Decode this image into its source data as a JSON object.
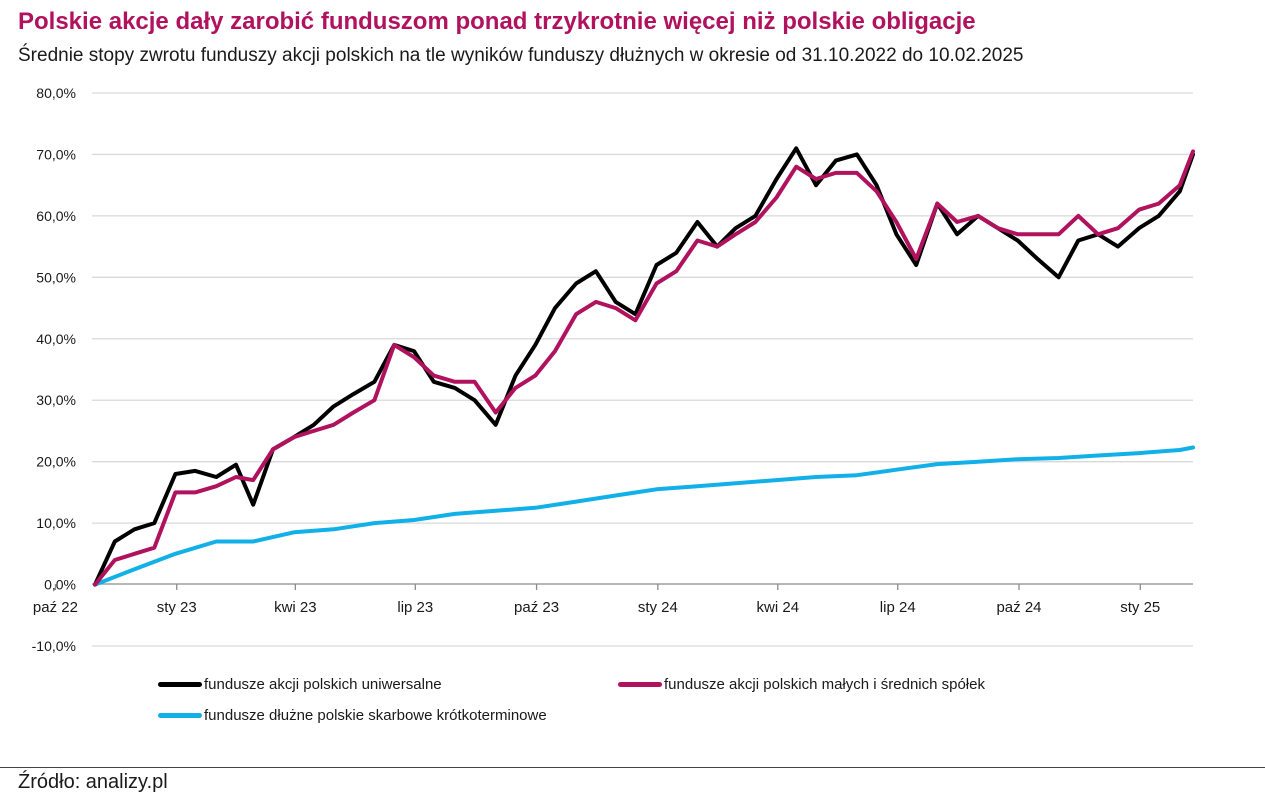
{
  "title": "Polskie akcje dały zarobić funduszom ponad trzykrotnie więcej niż polskie obligacje",
  "subtitle": "Średnie stopy zwrotu funduszy akcji polskich na tle wyników funduszy dłużnych w okresie od 31.10.2022 do 10.02.2025",
  "source": "Źródło: analizy.pl",
  "chart_data": {
    "type": "line",
    "title": "Polskie akcje dały zarobić funduszom ponad trzykrotnie więcej niż polskie obligacje",
    "subtitle": "Średnie stopy zwrotu funduszy akcji polskich na tle wyników funduszy dłużnych w okresie od 31.10.2022 do 10.02.2025",
    "y_range": [
      -10,
      80
    ],
    "y_ticks": [
      "80,0%",
      "70,0%",
      "60,0%",
      "50,0%",
      "40,0%",
      "30,0%",
      "20,0%",
      "10,0%",
      "0,0%",
      "-10,0%"
    ],
    "y_tick_values": [
      80,
      70,
      60,
      50,
      40,
      30,
      20,
      10,
      0,
      -10
    ],
    "x_range": [
      "2022-10-31",
      "2025-02-10"
    ],
    "x_ticks": [
      "paź 22",
      "sty 23",
      "kwi 23",
      "lip 23",
      "paź 23",
      "sty 24",
      "kwi 24",
      "lip 24",
      "paź 24",
      "sty 25"
    ],
    "x_tick_dates": [
      "2022-10-01",
      "2023-01-01",
      "2023-04-01",
      "2023-07-01",
      "2023-10-01",
      "2024-01-01",
      "2024-04-01",
      "2024-07-01",
      "2024-10-01",
      "2025-01-01"
    ],
    "grid": "horizontal",
    "legend_position": "bottom",
    "series": [
      {
        "name": "fundusze akcji polskich uniwersalne",
        "color": "#000000",
        "x": [
          "2022-10-31",
          "2022-11-15",
          "2022-11-30",
          "2022-12-15",
          "2022-12-31",
          "2023-01-15",
          "2023-01-31",
          "2023-02-15",
          "2023-02-28",
          "2023-03-15",
          "2023-03-31",
          "2023-04-15",
          "2023-04-30",
          "2023-05-15",
          "2023-05-31",
          "2023-06-15",
          "2023-06-30",
          "2023-07-15",
          "2023-07-31",
          "2023-08-15",
          "2023-08-31",
          "2023-09-15",
          "2023-09-30",
          "2023-10-15",
          "2023-10-31",
          "2023-11-15",
          "2023-11-30",
          "2023-12-15",
          "2023-12-31",
          "2024-01-15",
          "2024-01-31",
          "2024-02-15",
          "2024-02-29",
          "2024-03-15",
          "2024-03-31",
          "2024-04-15",
          "2024-04-30",
          "2024-05-15",
          "2024-05-31",
          "2024-06-15",
          "2024-06-30",
          "2024-07-15",
          "2024-07-31",
          "2024-08-15",
          "2024-08-31",
          "2024-09-15",
          "2024-09-30",
          "2024-10-15",
          "2024-10-31",
          "2024-11-15",
          "2024-11-30",
          "2024-12-15",
          "2024-12-31",
          "2025-01-15",
          "2025-01-31",
          "2025-02-10"
        ],
        "values": [
          0.0,
          7.0,
          9.0,
          10.0,
          18.0,
          18.5,
          17.5,
          19.5,
          13.0,
          22.0,
          24.0,
          26.0,
          29.0,
          31.0,
          33.0,
          39.0,
          38.0,
          33.0,
          32.0,
          30.0,
          26.0,
          34.0,
          39.0,
          45.0,
          49.0,
          51.0,
          46.0,
          44.0,
          52.0,
          54.0,
          59.0,
          55.0,
          58.0,
          60.0,
          66.0,
          71.0,
          65.0,
          69.0,
          70.0,
          65.0,
          57.0,
          52.0,
          62.0,
          57.0,
          60.0,
          58.0,
          56.0,
          53.0,
          50.0,
          56.0,
          57.0,
          55.0,
          58.0,
          60.0,
          64.0,
          70.0
        ]
      },
      {
        "name": "fundusze akcji polskich małych i średnich spółek",
        "color": "#b0125e",
        "x": [
          "2022-10-31",
          "2022-11-15",
          "2022-11-30",
          "2022-12-15",
          "2022-12-31",
          "2023-01-15",
          "2023-01-31",
          "2023-02-15",
          "2023-02-28",
          "2023-03-15",
          "2023-03-31",
          "2023-04-15",
          "2023-04-30",
          "2023-05-15",
          "2023-05-31",
          "2023-06-15",
          "2023-06-30",
          "2023-07-15",
          "2023-07-31",
          "2023-08-15",
          "2023-08-31",
          "2023-09-15",
          "2023-09-30",
          "2023-10-15",
          "2023-10-31",
          "2023-11-15",
          "2023-11-30",
          "2023-12-15",
          "2023-12-31",
          "2024-01-15",
          "2024-01-31",
          "2024-02-15",
          "2024-02-29",
          "2024-03-15",
          "2024-03-31",
          "2024-04-15",
          "2024-04-30",
          "2024-05-15",
          "2024-05-31",
          "2024-06-15",
          "2024-06-30",
          "2024-07-15",
          "2024-07-31",
          "2024-08-15",
          "2024-08-31",
          "2024-09-15",
          "2024-09-30",
          "2024-10-15",
          "2024-10-31",
          "2024-11-15",
          "2024-11-30",
          "2024-12-15",
          "2024-12-31",
          "2025-01-15",
          "2025-01-31",
          "2025-02-10"
        ],
        "values": [
          0.0,
          4.0,
          5.0,
          6.0,
          15.0,
          15.0,
          16.0,
          17.5,
          17.0,
          22.0,
          24.0,
          25.0,
          26.0,
          28.0,
          30.0,
          39.0,
          37.0,
          34.0,
          33.0,
          33.0,
          28.0,
          32.0,
          34.0,
          38.0,
          44.0,
          46.0,
          45.0,
          43.0,
          49.0,
          51.0,
          56.0,
          55.0,
          57.0,
          59.0,
          63.0,
          68.0,
          66.0,
          67.0,
          67.0,
          64.0,
          59.0,
          53.0,
          62.0,
          59.0,
          60.0,
          58.0,
          57.0,
          57.0,
          57.0,
          60.0,
          57.0,
          58.0,
          61.0,
          62.0,
          65.0,
          70.5
        ]
      },
      {
        "name": "fundusze dłużne polskie skarbowe krótkoterminowe",
        "color": "#12b0e8",
        "x": [
          "2022-10-31",
          "2022-11-30",
          "2022-12-31",
          "2023-01-31",
          "2023-02-28",
          "2023-03-31",
          "2023-04-30",
          "2023-05-31",
          "2023-06-30",
          "2023-07-31",
          "2023-08-31",
          "2023-09-30",
          "2023-10-31",
          "2023-11-30",
          "2023-12-31",
          "2024-01-31",
          "2024-02-29",
          "2024-03-31",
          "2024-04-30",
          "2024-05-31",
          "2024-06-30",
          "2024-07-31",
          "2024-08-31",
          "2024-09-30",
          "2024-10-31",
          "2024-11-30",
          "2024-12-31",
          "2025-01-31",
          "2025-02-10"
        ],
        "values": [
          0.0,
          2.5,
          5.0,
          7.0,
          7.0,
          8.5,
          9.0,
          10.0,
          10.5,
          11.5,
          12.0,
          12.5,
          13.5,
          14.5,
          15.5,
          16.0,
          16.5,
          17.0,
          17.5,
          17.8,
          18.7,
          19.6,
          20.0,
          20.4,
          20.6,
          21.0,
          21.4,
          21.9,
          22.3
        ]
      }
    ]
  }
}
